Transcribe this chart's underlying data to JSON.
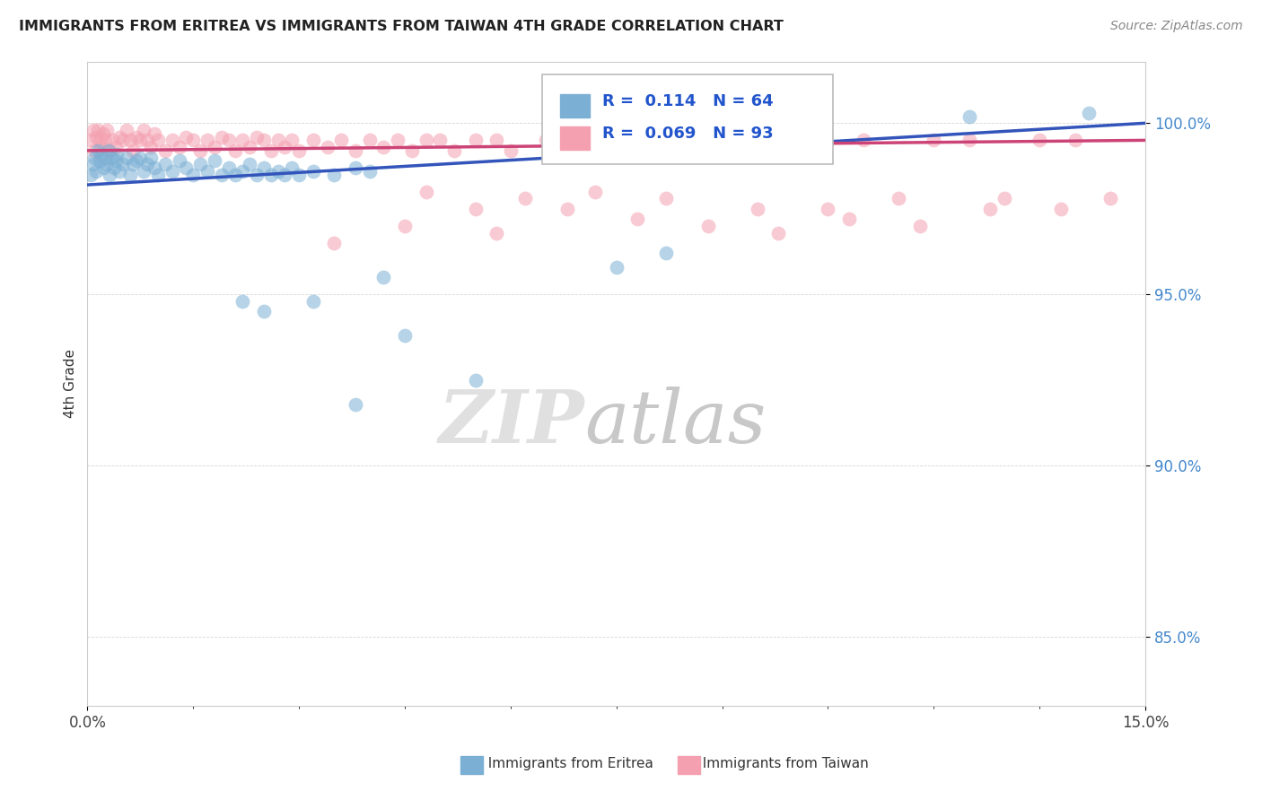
{
  "title": "IMMIGRANTS FROM ERITREA VS IMMIGRANTS FROM TAIWAN 4TH GRADE CORRELATION CHART",
  "source": "Source: ZipAtlas.com",
  "ylabel": "4th Grade",
  "color_eritrea": "#7BAFD4",
  "color_taiwan": "#F4A0B0",
  "color_line_eritrea": "#3355BB",
  "color_line_taiwan": "#CC4477",
  "legend_eritrea_R": 0.114,
  "legend_eritrea_N": 64,
  "legend_taiwan_R": 0.069,
  "legend_taiwan_N": 93,
  "xlim": [
    0.0,
    15.0
  ],
  "ylim": [
    83.0,
    101.8
  ],
  "yticks": [
    85.0,
    90.0,
    95.0,
    100.0
  ],
  "ytick_labels": [
    "85.0%",
    "90.0%",
    "95.0%",
    "100.0%"
  ],
  "eritrea_x": [
    0.05,
    0.08,
    0.1,
    0.12,
    0.15,
    0.18,
    0.2,
    0.22,
    0.25,
    0.28,
    0.3,
    0.32,
    0.35,
    0.38,
    0.4,
    0.42,
    0.45,
    0.5,
    0.55,
    0.6,
    0.65,
    0.7,
    0.75,
    0.8,
    0.85,
    0.9,
    0.95,
    1.0,
    1.1,
    1.2,
    1.3,
    1.4,
    1.5,
    1.6,
    1.7,
    1.8,
    1.9,
    2.0,
    2.1,
    2.2,
    2.3,
    2.4,
    2.5,
    2.6,
    2.7,
    2.8,
    2.9,
    3.0,
    3.2,
    3.5,
    3.8,
    4.0,
    2.2,
    2.5,
    3.2,
    4.2,
    4.5,
    7.5,
    12.5,
    14.2,
    7.5,
    8.2,
    3.8,
    5.5
  ],
  "eritrea_y": [
    98.5,
    98.8,
    99.0,
    98.6,
    99.2,
    98.9,
    99.1,
    98.7,
    99.0,
    98.8,
    99.2,
    98.5,
    99.0,
    98.7,
    98.9,
    99.1,
    98.6,
    98.8,
    99.0,
    98.5,
    98.8,
    98.9,
    99.0,
    98.6,
    98.8,
    99.0,
    98.7,
    98.5,
    98.8,
    98.6,
    98.9,
    98.7,
    98.5,
    98.8,
    98.6,
    98.9,
    98.5,
    98.7,
    98.5,
    98.6,
    98.8,
    98.5,
    98.7,
    98.5,
    98.6,
    98.5,
    98.7,
    98.5,
    98.6,
    98.5,
    98.7,
    98.6,
    94.8,
    94.5,
    94.8,
    95.5,
    93.8,
    99.5,
    100.2,
    100.3,
    95.8,
    96.2,
    91.8,
    92.5
  ],
  "taiwan_x": [
    0.05,
    0.08,
    0.1,
    0.12,
    0.15,
    0.18,
    0.2,
    0.22,
    0.25,
    0.28,
    0.3,
    0.35,
    0.4,
    0.45,
    0.5,
    0.55,
    0.6,
    0.65,
    0.7,
    0.75,
    0.8,
    0.85,
    0.9,
    0.95,
    1.0,
    1.1,
    1.2,
    1.3,
    1.4,
    1.5,
    1.6,
    1.7,
    1.8,
    1.9,
    2.0,
    2.1,
    2.2,
    2.3,
    2.4,
    2.5,
    2.6,
    2.7,
    2.8,
    2.9,
    3.0,
    3.2,
    3.4,
    3.6,
    3.8,
    4.0,
    4.2,
    4.4,
    4.6,
    4.8,
    5.0,
    5.2,
    5.5,
    5.8,
    6.0,
    6.5,
    7.0,
    7.5,
    8.0,
    8.5,
    9.0,
    9.5,
    10.0,
    11.0,
    12.0,
    12.5,
    13.5,
    14.0,
    4.8,
    5.5,
    6.2,
    6.8,
    7.2,
    8.2,
    9.5,
    10.5,
    11.5,
    12.8,
    13.0,
    3.5,
    4.5,
    5.8,
    7.8,
    8.8,
    9.8,
    10.8,
    11.8,
    13.8,
    14.5
  ],
  "taiwan_y": [
    99.5,
    99.8,
    99.2,
    99.6,
    99.8,
    99.5,
    99.3,
    99.7,
    99.5,
    99.8,
    99.2,
    99.5,
    99.3,
    99.6,
    99.5,
    99.8,
    99.5,
    99.2,
    99.6,
    99.5,
    99.8,
    99.5,
    99.3,
    99.7,
    99.5,
    99.2,
    99.5,
    99.3,
    99.6,
    99.5,
    99.2,
    99.5,
    99.3,
    99.6,
    99.5,
    99.2,
    99.5,
    99.3,
    99.6,
    99.5,
    99.2,
    99.5,
    99.3,
    99.5,
    99.2,
    99.5,
    99.3,
    99.5,
    99.2,
    99.5,
    99.3,
    99.5,
    99.2,
    99.5,
    99.5,
    99.2,
    99.5,
    99.5,
    99.2,
    99.5,
    99.5,
    99.5,
    99.5,
    99.5,
    99.5,
    99.5,
    99.5,
    99.5,
    99.5,
    99.5,
    99.5,
    99.5,
    98.0,
    97.5,
    97.8,
    97.5,
    98.0,
    97.8,
    97.5,
    97.5,
    97.8,
    97.5,
    97.8,
    96.5,
    97.0,
    96.8,
    97.2,
    97.0,
    96.8,
    97.2,
    97.0,
    97.5,
    97.8
  ],
  "line_eritrea_x0": 0.0,
  "line_eritrea_y0": 98.2,
  "line_eritrea_x1": 15.0,
  "line_eritrea_y1": 100.0,
  "line_taiwan_x0": 0.0,
  "line_taiwan_y0": 99.2,
  "line_taiwan_x1": 15.0,
  "line_taiwan_y1": 99.5
}
